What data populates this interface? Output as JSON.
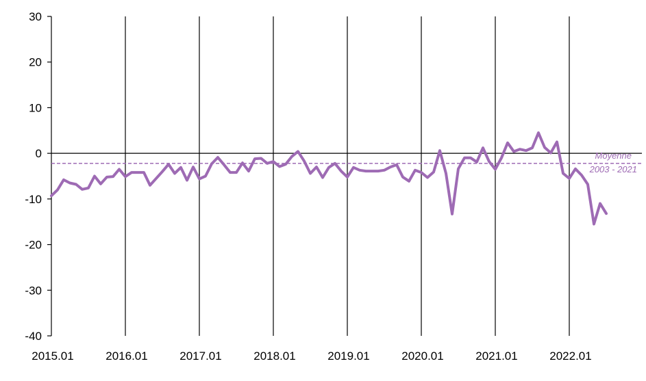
{
  "chart_data": {
    "type": "line",
    "title": "",
    "xlabel": "",
    "ylabel": "",
    "ylim": [
      -40,
      30
    ],
    "yticks": [
      "30",
      "20",
      "10",
      "0",
      "-10",
      "-20",
      "-30",
      "-40"
    ],
    "x_start": "2015.01",
    "x_end": "2022.12",
    "xtick_labels": [
      "2015.01",
      "2016.01",
      "2017.01",
      "2018.01",
      "2019.01",
      "2020.01",
      "2021.01",
      "2022.01"
    ],
    "grid": "vertical lines at each January",
    "series": [
      {
        "color": "#9e6bb4",
        "values": [
          -9.3,
          -8.0,
          -5.8,
          -6.5,
          -6.8,
          -7.9,
          -7.6,
          -5.0,
          -6.7,
          -5.2,
          -5.1,
          -3.5,
          -5.1,
          -4.2,
          -4.2,
          -4.2,
          -7.0,
          -5.5,
          -4.0,
          -2.4,
          -4.4,
          -3.1,
          -5.9,
          -3.0,
          -5.6,
          -5.0,
          -2.3,
          -0.9,
          -2.5,
          -4.2,
          -4.2,
          -2.1,
          -3.9,
          -1.2,
          -1.1,
          -2.2,
          -1.8,
          -2.9,
          -2.4,
          -0.7,
          0.4,
          -1.7,
          -4.4,
          -3.0,
          -5.3,
          -3.1,
          -2.2,
          -3.9,
          -5.2,
          -3.1,
          -3.7,
          -3.9,
          -3.9,
          -3.9,
          -3.7,
          -3.0,
          -2.5,
          -5.2,
          -6.1,
          -3.7,
          -4.2,
          -5.3,
          -4.1,
          0.6,
          -4.4,
          -13.3,
          -3.4,
          -1.0,
          -1.0,
          -1.9,
          1.2,
          -1.8,
          -3.5,
          -1.0,
          2.3,
          0.4,
          0.9,
          0.6,
          1.2,
          4.5,
          1.3,
          0.1,
          2.5,
          -4.4,
          -5.5,
          -3.4,
          -4.8,
          -6.8,
          -15.5,
          -11.0,
          -13.2
        ]
      }
    ],
    "reference_line": {
      "value": -2.2,
      "style": "dashed",
      "label_line1": "Moyenne",
      "label_line2": "2003 - 2021"
    }
  }
}
